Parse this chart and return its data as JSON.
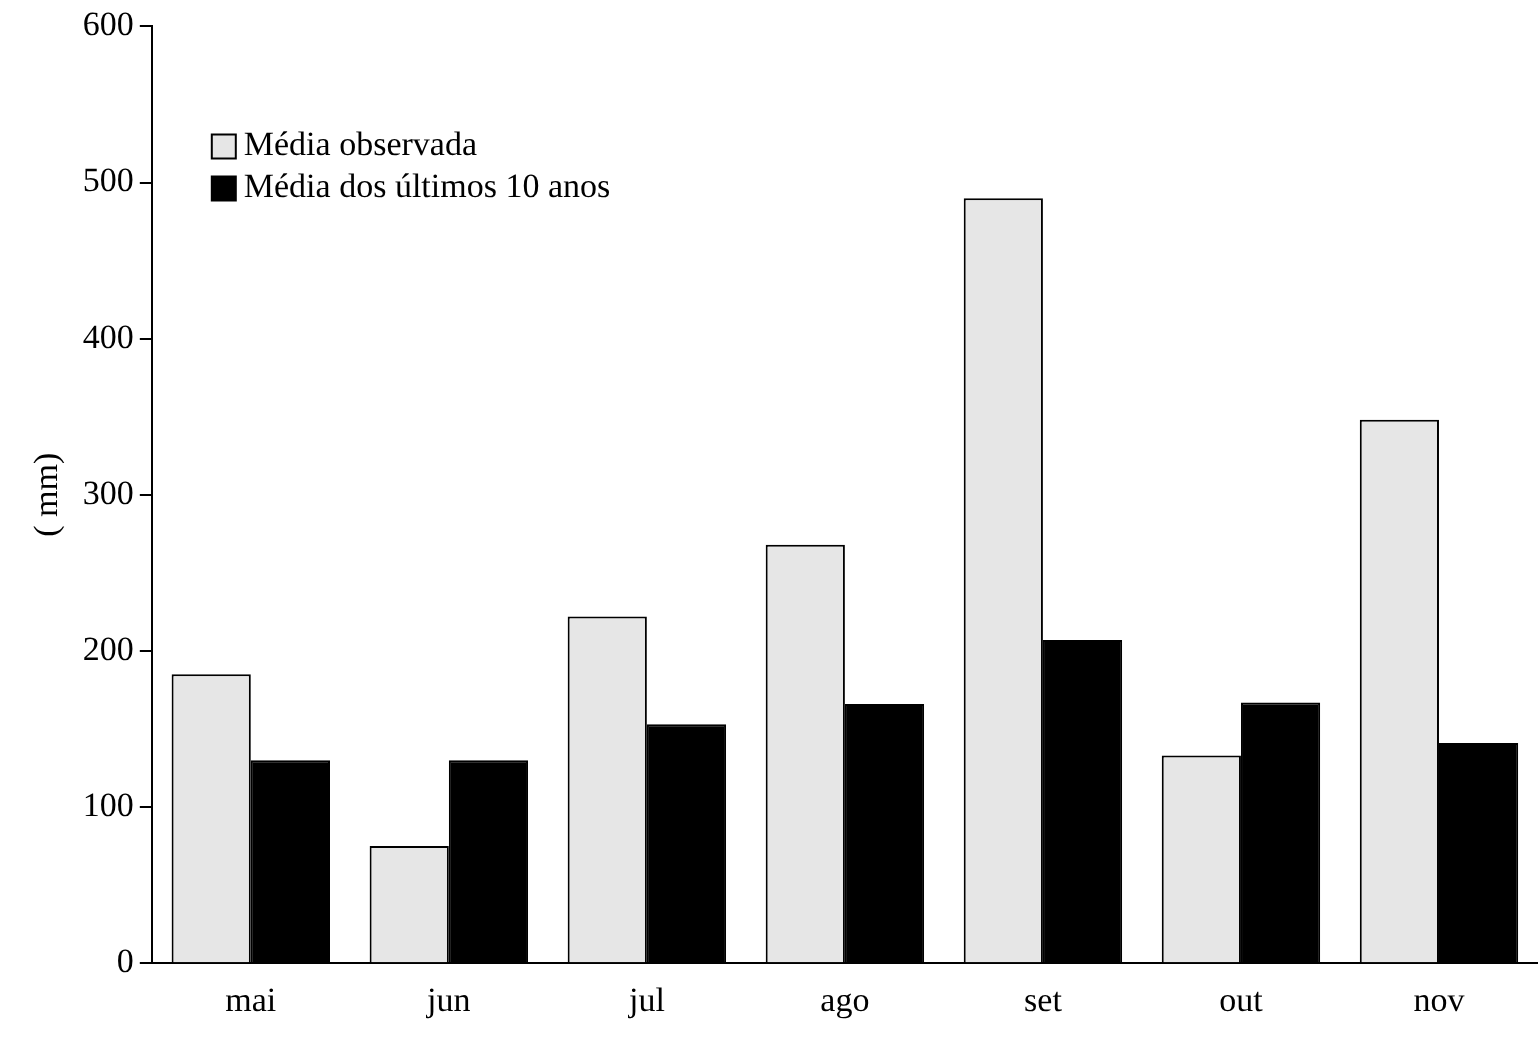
{
  "chart_data": {
    "type": "bar",
    "ylabel": "( mm)",
    "categories": [
      "mai",
      "jun",
      "jul",
      "ago",
      "set",
      "out",
      "nov"
    ],
    "series": [
      {
        "name": "Média observada",
        "color": "#e6e6e6",
        "values": [
          185,
          75,
          222,
          268,
          490,
          133,
          348
        ]
      },
      {
        "name": "Média dos últimos 10 anos",
        "color": "#000000",
        "values": [
          130,
          130,
          153,
          166,
          207,
          167,
          141
        ]
      }
    ],
    "ylim": [
      0,
      600
    ],
    "yticks": [
      0,
      100,
      200,
      300,
      400,
      500,
      600
    ],
    "grid": false,
    "legend": "top left"
  }
}
